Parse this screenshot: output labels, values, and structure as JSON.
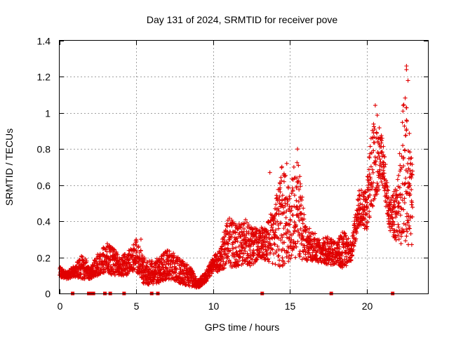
{
  "chart_data": {
    "type": "scatter",
    "title": "Day 131 of 2024, SRMTID for receiver pove",
    "xlabel": "GPS time / hours",
    "ylabel": "SRMTID / TECUs",
    "xlim": [
      0,
      24
    ],
    "ylim": [
      0,
      1.4
    ],
    "xticks": [
      0,
      5,
      10,
      15,
      20
    ],
    "yticks": [
      0,
      0.2,
      0.4,
      0.6,
      0.8,
      1,
      1.2,
      1.4
    ],
    "x_tick_labels": [
      "0",
      "5",
      "10",
      "15",
      "20"
    ],
    "y_tick_labels": [
      "0",
      "0.2",
      "0.4",
      "0.6",
      "0.8",
      "1",
      "1.2",
      "1.4"
    ],
    "grid": true,
    "marker": "plus",
    "color": "#e00000",
    "series": [
      {
        "name": "SRMTID",
        "envelope_hours": [
          0.0,
          0.5,
          1.0,
          1.5,
          2.0,
          2.5,
          3.0,
          3.5,
          4.0,
          4.5,
          5.0,
          5.5,
          6.0,
          6.5,
          7.0,
          7.5,
          8.0,
          8.5,
          9.0,
          9.5,
          10.0,
          10.5,
          11.0,
          11.5,
          12.0,
          12.5,
          13.0,
          13.5,
          14.0,
          14.5,
          15.0,
          15.5,
          16.0,
          16.5,
          17.0,
          17.5,
          18.0,
          18.5,
          19.0,
          19.5,
          20.0,
          20.5,
          21.0,
          21.5,
          22.0,
          22.5,
          23.0
        ],
        "envelope_low": [
          0.09,
          0.08,
          0.09,
          0.08,
          0.08,
          0.1,
          0.12,
          0.1,
          0.1,
          0.1,
          0.12,
          0.05,
          0.05,
          0.06,
          0.08,
          0.07,
          0.05,
          0.04,
          0.03,
          0.06,
          0.12,
          0.12,
          0.15,
          0.14,
          0.16,
          0.15,
          0.2,
          0.18,
          0.16,
          0.14,
          0.18,
          0.2,
          0.18,
          0.18,
          0.17,
          0.16,
          0.15,
          0.14,
          0.18,
          0.38,
          0.35,
          0.5,
          0.62,
          0.35,
          0.28,
          0.25,
          0.25
        ],
        "envelope_high": [
          0.15,
          0.12,
          0.16,
          0.22,
          0.15,
          0.22,
          0.3,
          0.25,
          0.2,
          0.24,
          0.3,
          0.2,
          0.18,
          0.2,
          0.24,
          0.22,
          0.18,
          0.15,
          0.07,
          0.12,
          0.2,
          0.28,
          0.43,
          0.38,
          0.42,
          0.38,
          0.36,
          0.38,
          0.5,
          0.72,
          0.6,
          0.79,
          0.38,
          0.35,
          0.3,
          0.32,
          0.28,
          0.35,
          0.28,
          0.58,
          0.6,
          1.07,
          0.9,
          0.52,
          0.6,
          1.26,
          0.7
        ]
      }
    ],
    "outliers": [
      {
        "x": 5.3,
        "y": 0.3
      },
      {
        "x": 13.7,
        "y": 0.67
      },
      {
        "x": 14.8,
        "y": 0.72
      },
      {
        "x": 15.5,
        "y": 0.8
      },
      {
        "x": 22.6,
        "y": 1.26
      },
      {
        "x": 22.6,
        "y": 1.24
      },
      {
        "x": 22.7,
        "y": 1.18
      },
      {
        "x": 22.6,
        "y": 0.96
      },
      {
        "x": 22.6,
        "y": 0.91
      }
    ],
    "zero_markers_hours": [
      0.85,
      1.9,
      2.05,
      2.2,
      2.95,
      3.3,
      4.2,
      6.0,
      6.4,
      13.2,
      17.7,
      21.7
    ]
  }
}
